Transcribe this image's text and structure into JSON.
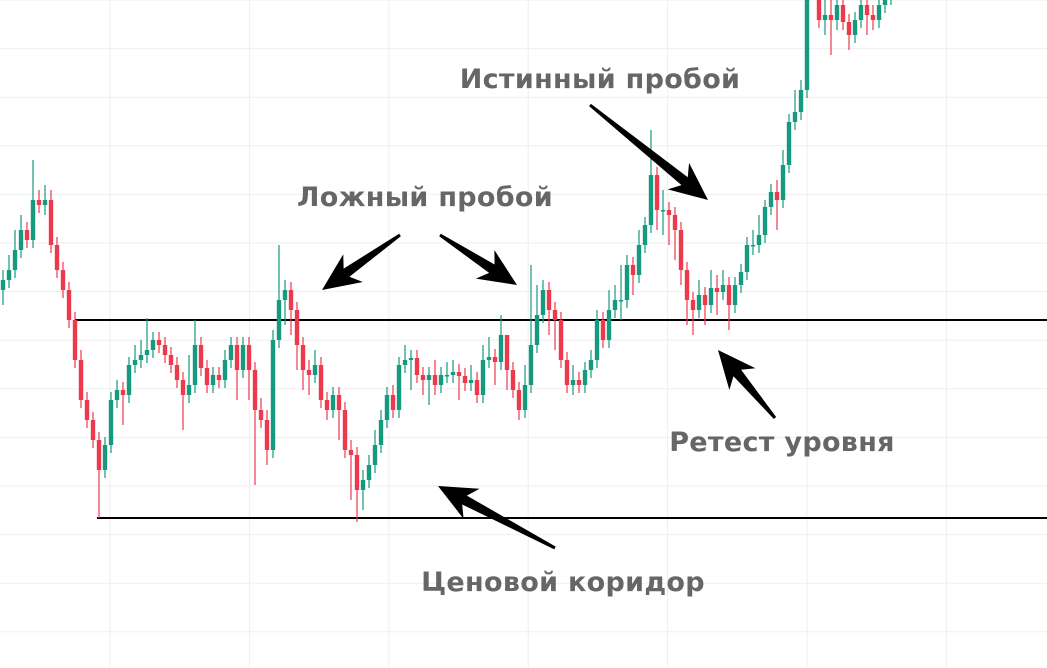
{
  "chart_data": {
    "type": "candlestick",
    "title": "",
    "xlabel": "",
    "ylabel": "",
    "grid": true,
    "colors": {
      "up": "#15997f",
      "down": "#ec3a4c",
      "level": "#000000",
      "grid": "#efefef",
      "annotation": "#666666",
      "arrow": "#000000"
    },
    "levels": [
      38.0,
      18.2
    ],
    "candles_ohlc": [
      [
        41,
        43,
        39.5,
        42
      ],
      [
        42,
        44.5,
        41.2,
        43
      ],
      [
        43,
        47,
        42.2,
        45
      ],
      [
        45,
        48.5,
        44.2,
        47
      ],
      [
        47,
        47.8,
        45.2,
        46
      ],
      [
        46,
        54,
        45.2,
        50
      ],
      [
        50,
        51,
        48.7,
        49.5
      ],
      [
        49.5,
        51.5,
        48.5,
        50
      ],
      [
        50,
        51,
        44.7,
        45.5
      ],
      [
        45.5,
        46.3,
        42.2,
        43
      ],
      [
        43,
        43.8,
        40.2,
        41
      ],
      [
        41,
        41.8,
        37.2,
        38
      ],
      [
        38,
        38.8,
        33.2,
        34
      ],
      [
        34,
        35,
        29.2,
        30
      ],
      [
        30,
        30.8,
        27.2,
        28
      ],
      [
        28,
        28.8,
        25.2,
        26
      ],
      [
        26,
        26.8,
        18.2,
        23
      ],
      [
        23,
        26.3,
        22.2,
        25.5
      ],
      [
        25.5,
        30.8,
        24.7,
        30
      ],
      [
        30,
        32,
        29.2,
        31
      ],
      [
        31,
        31.8,
        27.5,
        30.5
      ],
      [
        30.5,
        34.3,
        29.7,
        33.5
      ],
      [
        33.5,
        35.5,
        32.7,
        34
      ],
      [
        34,
        36,
        33.2,
        34.5
      ],
      [
        34.5,
        38.2,
        33.7,
        35
      ],
      [
        35,
        36.8,
        34.2,
        36
      ],
      [
        36,
        36.8,
        34.7,
        35.5
      ],
      [
        35.5,
        36.3,
        33.7,
        34.5
      ],
      [
        34.5,
        35.3,
        32.7,
        33.5
      ],
      [
        33.5,
        34.3,
        31.2,
        32
      ],
      [
        32,
        32.8,
        27,
        30.5
      ],
      [
        30.5,
        34.5,
        29.7,
        31.5
      ],
      [
        31.5,
        38,
        30.7,
        35.5
      ],
      [
        35.5,
        36.3,
        32.4,
        33.2
      ],
      [
        33.2,
        34,
        30.7,
        31.5
      ],
      [
        31.5,
        33.3,
        30.7,
        32.5
      ],
      [
        32.5,
        33.3,
        31.2,
        32
      ],
      [
        32,
        35,
        31.2,
        34
      ],
      [
        34,
        36.3,
        33.2,
        35.5
      ],
      [
        35.5,
        36.3,
        30,
        33
      ],
      [
        33,
        36.3,
        32.2,
        35.5
      ],
      [
        35.5,
        36.3,
        30,
        33
      ],
      [
        33,
        33.8,
        21.5,
        29
      ],
      [
        29,
        30.2,
        27.2,
        28
      ],
      [
        28,
        29,
        23.5,
        25
      ],
      [
        25,
        37,
        24.2,
        36
      ],
      [
        36,
        45.5,
        35.2,
        40
      ],
      [
        40,
        42,
        37.5,
        41
      ],
      [
        41,
        41.8,
        36.5,
        39
      ],
      [
        39,
        39.8,
        33,
        35.5
      ],
      [
        35.5,
        36.3,
        31,
        33
      ],
      [
        33,
        34,
        30.5,
        32.5
      ],
      [
        32.5,
        35,
        31.7,
        33.5
      ],
      [
        33.5,
        34.3,
        29.2,
        30
      ],
      [
        30,
        30.8,
        28,
        29
      ],
      [
        29,
        31.3,
        28.2,
        30.5
      ],
      [
        30.5,
        31.3,
        26,
        29
      ],
      [
        29,
        29.8,
        24.2,
        25
      ],
      [
        25,
        26,
        20,
        24.5
      ],
      [
        24.5,
        25.3,
        17.8,
        21
      ],
      [
        21,
        23,
        19,
        22
      ],
      [
        22,
        24.5,
        21.2,
        23.5
      ],
      [
        23.5,
        27,
        22.7,
        25.5
      ],
      [
        25.5,
        29,
        24.7,
        28
      ],
      [
        28,
        31.3,
        27.2,
        30.5
      ],
      [
        30.5,
        31.5,
        28.2,
        29
      ],
      [
        29,
        34.3,
        28.2,
        33.5
      ],
      [
        33.5,
        35.5,
        32.7,
        34
      ],
      [
        34,
        35,
        31,
        34.2
      ],
      [
        34.2,
        35,
        31.7,
        32.5
      ],
      [
        32.5,
        33.3,
        30.5,
        32
      ],
      [
        32,
        33.3,
        29.5,
        32.5
      ],
      [
        32.5,
        34,
        30.5,
        31.5
      ],
      [
        31.5,
        33.3,
        30.7,
        32.5
      ],
      [
        32.5,
        33.8,
        31.7,
        32.5
      ],
      [
        32.5,
        34,
        31.7,
        32.8
      ],
      [
        32.8,
        33.6,
        30,
        32.4
      ],
      [
        32.4,
        33.2,
        30.9,
        31.7
      ],
      [
        31.7,
        33.5,
        30.9,
        32
      ],
      [
        32,
        32.8,
        29.7,
        30.5
      ],
      [
        30.5,
        35.5,
        29.7,
        34
      ],
      [
        34,
        36.3,
        33.2,
        34.3
      ],
      [
        34.3,
        35.1,
        31.5,
        33.8
      ],
      [
        33.8,
        38.5,
        33,
        36.5
      ],
      [
        36.5,
        36.5,
        31,
        33
      ],
      [
        33,
        33.8,
        30.2,
        31
      ],
      [
        31,
        31.8,
        28,
        29
      ],
      [
        29,
        33.5,
        28.2,
        31.5
      ],
      [
        31.5,
        43.5,
        30.7,
        35.5
      ],
      [
        35.5,
        41.5,
        34.7,
        38.5
      ],
      [
        38.5,
        42,
        37.7,
        41
      ],
      [
        41,
        41.8,
        36.5,
        39
      ],
      [
        39,
        39.8,
        35,
        38
      ],
      [
        38,
        38.8,
        33.2,
        34
      ],
      [
        34,
        34.8,
        30.7,
        31.5
      ],
      [
        31.5,
        33.5,
        30.5,
        32
      ],
      [
        32,
        32.8,
        30.7,
        31.5
      ],
      [
        31.5,
        33.8,
        30.7,
        33
      ],
      [
        33,
        35,
        32.2,
        34
      ],
      [
        34,
        39,
        33.2,
        38
      ],
      [
        38,
        38.8,
        35.2,
        36
      ],
      [
        36,
        41,
        35.2,
        39
      ],
      [
        39,
        41.5,
        38.2,
        40
      ],
      [
        40,
        43.5,
        38,
        40
      ],
      [
        40,
        44.5,
        39.2,
        43.5
      ],
      [
        43.5,
        44.3,
        40.5,
        42.5
      ],
      [
        42.5,
        47,
        41.7,
        45.5
      ],
      [
        45.5,
        48.3,
        44.7,
        47.5
      ],
      [
        47.5,
        57,
        46.7,
        52.5
      ],
      [
        52.5,
        53.3,
        47,
        49
      ],
      [
        49,
        51,
        46.5,
        49
      ],
      [
        49,
        49.8,
        45.5,
        48.5
      ],
      [
        48.5,
        49.3,
        44,
        47
      ],
      [
        47,
        47.8,
        41.5,
        43
      ],
      [
        43,
        43.8,
        37.5,
        40
      ],
      [
        40,
        40.8,
        36.5,
        39
      ],
      [
        39,
        42,
        38.2,
        40.5
      ],
      [
        40.5,
        41.3,
        37.5,
        39.5
      ],
      [
        39.5,
        43,
        38.7,
        41.2
      ],
      [
        41.2,
        42.5,
        38.5,
        40.8
      ],
      [
        40.8,
        43,
        40,
        41.5
      ],
      [
        41.5,
        42.3,
        37,
        39.5
      ],
      [
        39.5,
        42.3,
        38.7,
        41.5
      ],
      [
        41.5,
        43.6,
        40.7,
        42.8
      ],
      [
        42.8,
        46.3,
        42,
        45.5
      ],
      [
        45.5,
        47,
        44.5,
        45.5
      ],
      [
        45.5,
        48.5,
        44.7,
        46.5
      ],
      [
        46.5,
        50,
        45.7,
        49.3
      ],
      [
        49.3,
        51.6,
        48.5,
        50.8
      ],
      [
        50.8,
        52,
        47,
        50
      ],
      [
        50,
        55,
        49.2,
        53.5
      ],
      [
        53.5,
        58.6,
        52.7,
        57.8
      ],
      [
        57.8,
        61,
        57,
        58.8
      ],
      [
        58.8,
        62,
        58,
        61
      ],
      [
        61,
        73,
        60.2,
        71
      ],
      [
        71,
        73,
        70,
        72
      ],
      [
        72,
        72.8,
        67.2,
        68
      ],
      [
        68,
        70,
        66.5,
        68.5
      ],
      [
        68.5,
        70,
        64.5,
        68
      ],
      [
        68,
        70.3,
        67,
        69.5
      ],
      [
        69.5,
        70.3,
        67,
        67.8
      ],
      [
        67.8,
        68.6,
        65,
        66.5
      ],
      [
        66.5,
        68.8,
        65.7,
        68
      ],
      [
        68,
        70.3,
        67.2,
        69.5
      ],
      [
        69.5,
        70.5,
        66.5,
        68.5
      ],
      [
        68.5,
        69.5,
        67,
        68
      ],
      [
        68,
        70.3,
        67.2,
        69.5
      ],
      [
        69.5,
        72,
        68.7,
        71
      ],
      [
        71,
        72,
        69.5,
        71.5
      ]
    ],
    "annotations": {
      "true_breakout": "Истинный пробой",
      "false_breakout": "Ложный пробой",
      "retest": "Ретест уровня",
      "price_channel": "Ценовой коридор"
    }
  }
}
